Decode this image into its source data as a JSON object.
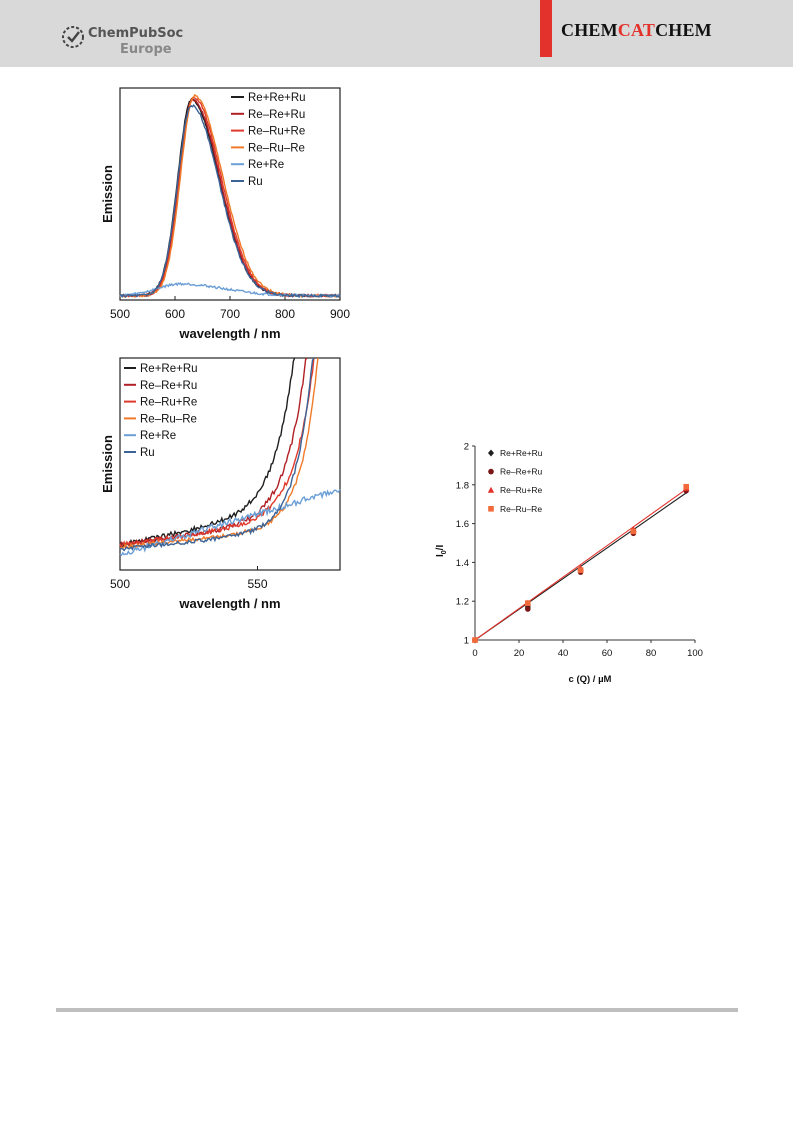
{
  "header": {
    "publisher_name": "ChemPubSoc",
    "publisher_region": "Europe",
    "journal_part1": "CHEM",
    "journal_part2": "CAT",
    "journal_part3": "CHEM",
    "accent_color": "#e3322b",
    "background_color": "#d9d9d9"
  },
  "chart_data": [
    {
      "type": "line",
      "xlabel": "wavelength / nm",
      "ylabel": "Emission",
      "xlim": [
        500,
        900
      ],
      "xticks": [
        "500",
        "600",
        "700",
        "800",
        "900"
      ],
      "legend_position": "top-right",
      "series": [
        {
          "name": "Re+Re+Ru",
          "color": "#1f1f1f",
          "peak": 630,
          "amp": 1.0,
          "rise": 35,
          "fall": 70
        },
        {
          "name": "Re–Re+Ru",
          "color": "#b02025",
          "peak": 632,
          "amp": 1.0,
          "rise": 35,
          "fall": 70
        },
        {
          "name": "Re–Ru+Re",
          "color": "#e03a2c",
          "peak": 634,
          "amp": 1.01,
          "rise": 35,
          "fall": 70
        },
        {
          "name": "Re–Ru–Re",
          "color": "#f07a28",
          "peak": 635,
          "amp": 1.02,
          "rise": 35,
          "fall": 72
        },
        {
          "name": "Re+Re",
          "color": "#6a9ed6",
          "peak": 610,
          "amp": 0.06,
          "rise": 60,
          "fall": 110
        },
        {
          "name": "Ru",
          "color": "#3c6396",
          "peak": 630,
          "amp": 0.97,
          "rise": 35,
          "fall": 70
        }
      ]
    },
    {
      "type": "line",
      "xlabel": "wavelength / nm",
      "ylabel": "Emission",
      "xlim": [
        500,
        580
      ],
      "xticks": [
        "500",
        "550"
      ],
      "legend_position": "top-left",
      "series": [
        {
          "name": "Re+Re+Ru",
          "color": "#1f1f1f"
        },
        {
          "name": "Re–Re+Ru",
          "color": "#b02025"
        },
        {
          "name": "Re–Ru+Re",
          "color": "#e03a2c"
        },
        {
          "name": "Re–Ru–Re",
          "color": "#f07a28"
        },
        {
          "name": "Re+Re",
          "color": "#6a9ed6"
        },
        {
          "name": "Ru",
          "color": "#3c6396"
        }
      ]
    },
    {
      "type": "scatter",
      "xlabel": "c (Q) / µM",
      "ylabel_main": "I",
      "ylabel_sub": "0",
      "ylabel_tail": "/I",
      "xlim": [
        0,
        100
      ],
      "ylim": [
        1,
        2
      ],
      "xticks": [
        "0",
        "20",
        "40",
        "60",
        "80",
        "100"
      ],
      "yticks": [
        "1",
        "1.2",
        "1.4",
        "1.6",
        "1.8",
        "2"
      ],
      "legend_position": "top-left",
      "series": [
        {
          "name": "Re+Re+Ru",
          "color": "#1f1f1f",
          "marker": "diamond",
          "x": [
            0,
            24,
            48,
            72,
            96
          ],
          "y": [
            1.0,
            1.17,
            1.36,
            1.56,
            1.77
          ]
        },
        {
          "name": "Re–Re+Ru",
          "color": "#7a1616",
          "marker": "circle",
          "x": [
            0,
            24,
            48,
            72,
            96
          ],
          "y": [
            1.0,
            1.16,
            1.35,
            1.55,
            1.77
          ]
        },
        {
          "name": "Re–Ru+Re",
          "color": "#e3322b",
          "marker": "triangle",
          "x": [
            0,
            24,
            48,
            72,
            96
          ],
          "y": [
            1.0,
            1.19,
            1.37,
            1.57,
            1.78
          ]
        },
        {
          "name": "Re–Ru–Re",
          "color": "#f26a3a",
          "marker": "square",
          "x": [
            0,
            24,
            48,
            72,
            96
          ],
          "y": [
            1.0,
            1.19,
            1.36,
            1.56,
            1.79
          ]
        }
      ],
      "fits": [
        {
          "color": "#1f1f1f",
          "y0": 1.0,
          "y100": 1.79
        },
        {
          "color": "#e3322b",
          "y0": 1.0,
          "y100": 1.81
        }
      ]
    }
  ]
}
